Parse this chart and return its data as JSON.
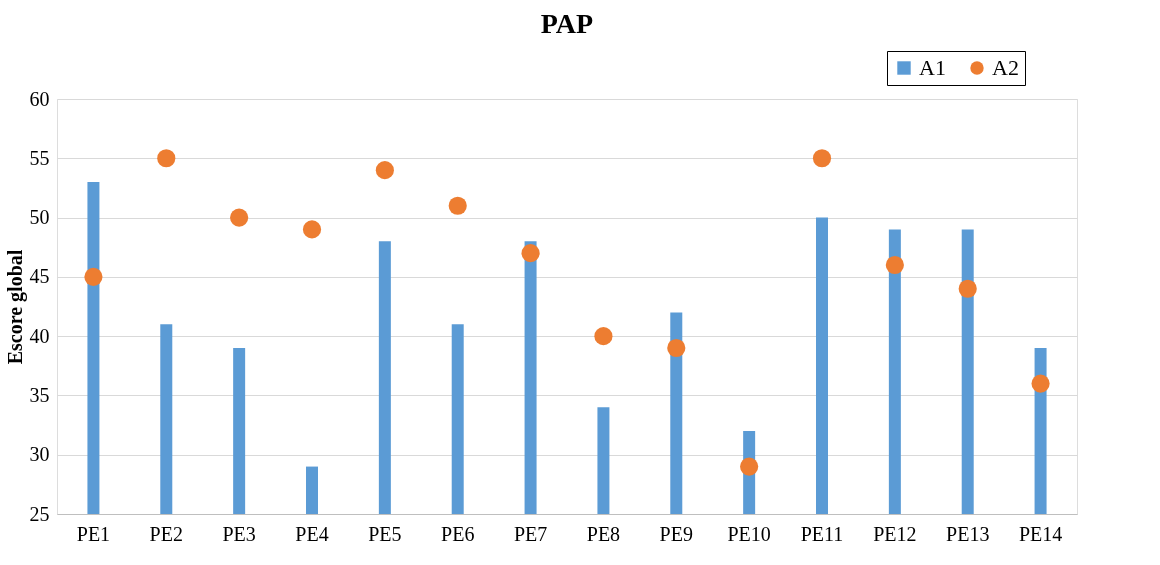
{
  "chart_data": {
    "type": "bar",
    "title": "PAP",
    "ylabel": "Escore global",
    "categories": [
      "PE1",
      "PE2",
      "PE3",
      "PE4",
      "PE5",
      "PE6",
      "PE7",
      "PE8",
      "PE9",
      "PE10",
      "PE11",
      "PE12",
      "PE13",
      "PE14"
    ],
    "series": [
      {
        "name": "A1",
        "color": "#5b9bd5",
        "values": [
          53,
          41,
          39,
          29,
          48,
          41,
          48,
          34,
          42,
          32,
          50,
          49,
          49,
          39
        ]
      },
      {
        "name": "A2",
        "type": "scatter",
        "color": "#ed7d31",
        "values": [
          45,
          55,
          50,
          49,
          54,
          51,
          47,
          40,
          39,
          29,
          55,
          46,
          44,
          36
        ]
      }
    ],
    "ylim": [
      25,
      60
    ],
    "yticks": [
      25,
      30,
      35,
      40,
      45,
      50,
      55,
      60
    ],
    "grid": "y",
    "legend": "top right",
    "marker": "circle"
  }
}
